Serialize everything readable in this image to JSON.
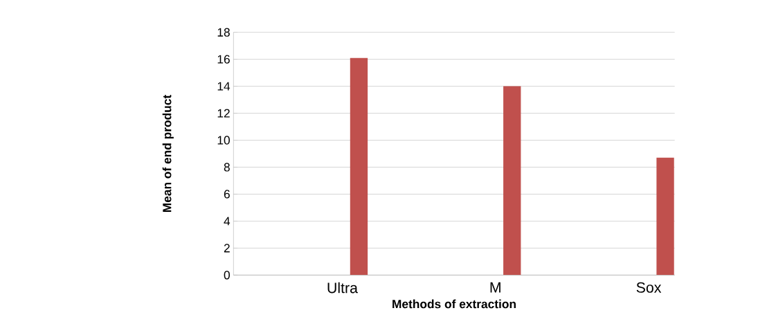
{
  "chart_data": {
    "type": "bar",
    "xlabel": "Methods of extraction",
    "ylabel": "Mean of end product",
    "categories": [
      "Ultra",
      "M",
      "Sox"
    ],
    "values": [
      16.1,
      14.0,
      8.7
    ],
    "color": "#c0504d",
    "ylim": [
      0,
      18
    ],
    "yticks": [
      0,
      2,
      4,
      6,
      8,
      10,
      12,
      14,
      16,
      18
    ],
    "grid": "y"
  }
}
